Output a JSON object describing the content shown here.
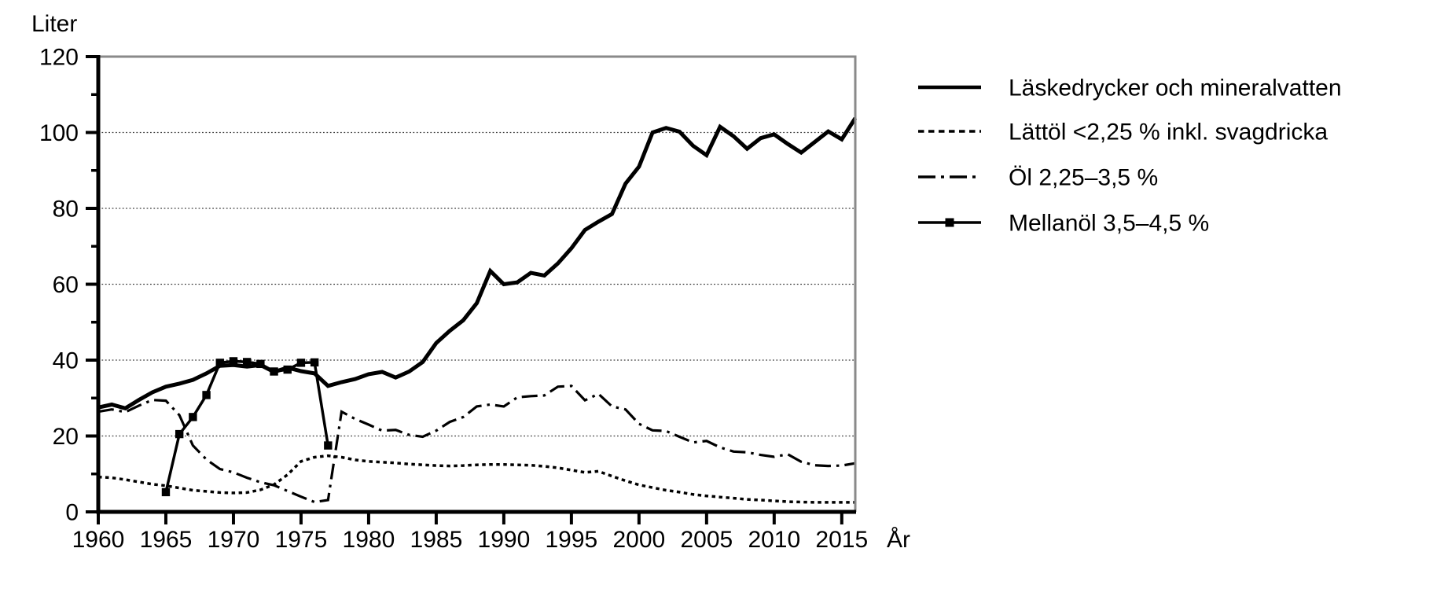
{
  "chart_data": {
    "type": "line",
    "title": "",
    "y_title": "Liter",
    "x_title": "År",
    "xlim": [
      1960,
      2016
    ],
    "ylim": [
      0,
      120
    ],
    "x_ticks": [
      1960,
      1965,
      1970,
      1975,
      1980,
      1985,
      1990,
      1995,
      2000,
      2005,
      2010,
      2015
    ],
    "y_major_ticks": [
      0,
      20,
      40,
      60,
      80,
      100,
      120
    ],
    "y_minor_ticks": [
      10,
      30,
      50,
      70,
      90,
      110
    ],
    "grid": "horizontal dotted lines at 20,40,60,80,100",
    "legend_position": "top-right outside plot",
    "colors": {
      "line": "#000000",
      "frame_gray": "#8a8a8a",
      "grid": "#3c3c3c",
      "background": "#ffffff"
    },
    "series": [
      {
        "name": "Läskedrycker och mineralvatten",
        "slug": "laskedrycker",
        "style": "solid",
        "years_start": 1960,
        "years": [
          1960,
          1961,
          1962,
          1963,
          1964,
          1965,
          1966,
          1967,
          1968,
          1969,
          1970,
          1971,
          1972,
          1973,
          1974,
          1975,
          1976,
          1977,
          1978,
          1979,
          1980,
          1981,
          1982,
          1983,
          1984,
          1985,
          1986,
          1987,
          1988,
          1989,
          1990,
          1991,
          1992,
          1993,
          1994,
          1995,
          1996,
          1997,
          1998,
          1999,
          2000,
          2001,
          2002,
          2003,
          2004,
          2005,
          2006,
          2007,
          2008,
          2009,
          2010,
          2011,
          2012,
          2013,
          2014,
          2015,
          2016
        ],
        "values": [
          27.5,
          28.3,
          27.3,
          29.5,
          31.5,
          33,
          33.8,
          34.8,
          36.5,
          38.5,
          38.7,
          38.3,
          38.7,
          36.9,
          38,
          37.1,
          36.5,
          33.2,
          34.2,
          35,
          36.3,
          36.9,
          35.4,
          37,
          39.5,
          44.5,
          47.7,
          50.5,
          55,
          63.5,
          60,
          60.5,
          63,
          62.3,
          65.5,
          69.5,
          74.3,
          76.5,
          78.5,
          86.5,
          91,
          100,
          101.2,
          100.2,
          96.5,
          94,
          101.5,
          99,
          95.7,
          98.5,
          99.5,
          97,
          94.7,
          97.5,
          100.3,
          98.2,
          103.8
        ]
      },
      {
        "name": "Lättöl <2,25 % inkl. svagdricka",
        "slug": "lattol",
        "style": "dotted",
        "years_start": 1960,
        "years": [
          1960,
          1961,
          1962,
          1963,
          1964,
          1965,
          1966,
          1967,
          1968,
          1969,
          1970,
          1971,
          1972,
          1973,
          1974,
          1975,
          1976,
          1977,
          1978,
          1979,
          1980,
          1981,
          1982,
          1983,
          1984,
          1985,
          1986,
          1987,
          1988,
          1989,
          1990,
          1991,
          1992,
          1993,
          1994,
          1995,
          1996,
          1997,
          1998,
          1999,
          2000,
          2001,
          2002,
          2003,
          2004,
          2005,
          2006,
          2007,
          2008,
          2009,
          2010,
          2011,
          2012,
          2013,
          2014,
          2015,
          2016
        ],
        "values": [
          9.2,
          9.0,
          8.5,
          7.9,
          7.3,
          6.9,
          6.3,
          5.7,
          5.4,
          5.1,
          5.0,
          5.1,
          5.8,
          7.2,
          9.8,
          13.3,
          14.4,
          14.8,
          14.4,
          13.7,
          13.3,
          13.1,
          12.9,
          12.6,
          12.4,
          12.2,
          12.1,
          12.2,
          12.4,
          12.5,
          12.5,
          12.4,
          12.3,
          12.0,
          11.6,
          11.0,
          10.4,
          10.7,
          9.4,
          8.2,
          7.1,
          6.4,
          5.7,
          5.2,
          4.6,
          4.2,
          3.9,
          3.6,
          3.3,
          3.1,
          2.9,
          2.7,
          2.6,
          2.5,
          2.5,
          2.5,
          2.5
        ]
      },
      {
        "name": "Öl 2,25–3,5 %",
        "slug": "ol",
        "style": "dashdot",
        "years_start": 1960,
        "years": [
          1960,
          1961,
          1962,
          1963,
          1964,
          1965,
          1966,
          1967,
          1968,
          1969,
          1970,
          1971,
          1972,
          1973,
          1974,
          1975,
          1976,
          1977,
          1978,
          1979,
          1980,
          1981,
          1982,
          1983,
          1984,
          1985,
          1986,
          1987,
          1988,
          1989,
          1990,
          1991,
          1992,
          1993,
          1994,
          1995,
          1996,
          1997,
          1998,
          1999,
          2000,
          2001,
          2002,
          2003,
          2004,
          2005,
          2006,
          2007,
          2008,
          2009,
          2010,
          2011,
          2012,
          2013,
          2014,
          2015,
          2016
        ],
        "values": [
          26.4,
          27.0,
          26.3,
          28.0,
          29.5,
          29.3,
          25.5,
          17.5,
          13.8,
          11.3,
          10.4,
          9.0,
          7.8,
          7.0,
          5.5,
          4.0,
          2.6,
          3.1,
          26.4,
          24.5,
          23.0,
          21.4,
          21.6,
          20.3,
          19.8,
          21.4,
          23.7,
          25.0,
          27.8,
          28.3,
          27.8,
          30.2,
          30.5,
          30.7,
          33.0,
          33.2,
          29.4,
          31.1,
          27.8,
          27.0,
          23.2,
          21.5,
          21.3,
          19.8,
          18.3,
          18.7,
          17.0,
          15.9,
          15.7,
          15.0,
          14.5,
          15.2,
          13.2,
          12.3,
          12.1,
          12.2,
          12.8
        ]
      },
      {
        "name": "Mellanöl 3,5–4,5 %",
        "slug": "mellanol",
        "style": "solid-square-markers",
        "years_start": 1965,
        "years": [
          1965,
          1966,
          1967,
          1968,
          1969,
          1970,
          1971,
          1972,
          1973,
          1974,
          1975,
          1976,
          1977
        ],
        "values": [
          5.2,
          20.5,
          25.0,
          30.8,
          39.3,
          39.7,
          39.5,
          39.0,
          37.0,
          37.5,
          39.3,
          39.4,
          17.5
        ]
      }
    ]
  }
}
